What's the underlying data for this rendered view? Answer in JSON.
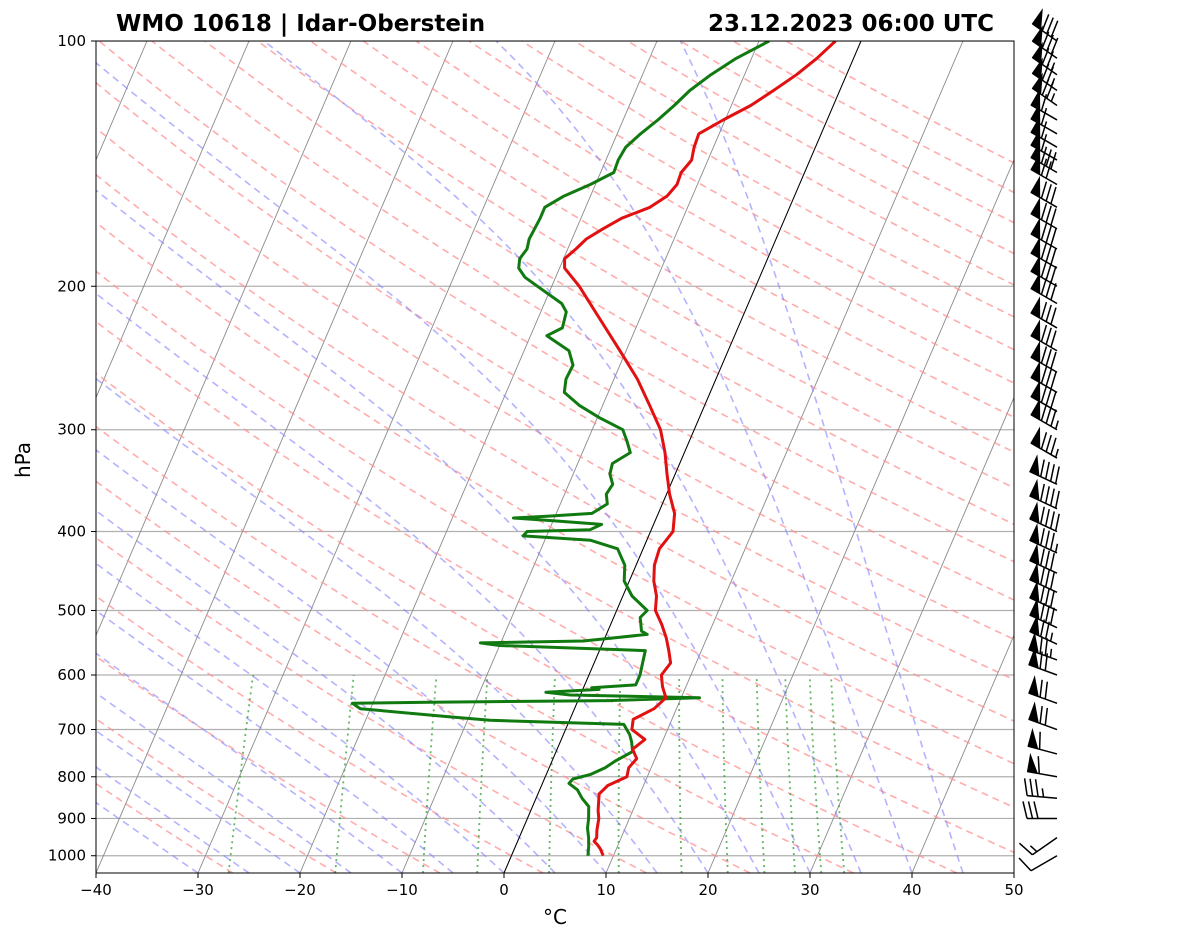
{
  "chart_data": {
    "type": "line",
    "chart_kind": "Skew-T log-P diagram",
    "title_left": "WMO 10618 | Idar-Oberstein",
    "title_right": "23.12.2023 06:00 UTC",
    "xlabel": "°C",
    "ylabel": "hPa",
    "xlim": [
      -40,
      50
    ],
    "ylim": [
      1050,
      100
    ],
    "y_scale": "log",
    "x_ticks": [
      "−40",
      "−30",
      "−20",
      "−10",
      "0",
      "10",
      "20",
      "30",
      "40",
      "50"
    ],
    "y_ticks": [
      "100",
      "200",
      "300",
      "400",
      "500",
      "600",
      "700",
      "800",
      "900",
      "1000"
    ],
    "isobar_grid": true,
    "colors": {
      "temperature": "#e11111",
      "dewpoint": "#107a10",
      "isotherms": "#8a8a8a",
      "dry_adiabats": "#ff9090",
      "moist_adiabats": "#8080ff",
      "mixing_ratio": "#30a030",
      "zero_isotherm": "#000000"
    },
    "series": [
      {
        "key": "temperature",
        "points": [
          [
            1000,
            9.0
          ],
          [
            980,
            8.4
          ],
          [
            970,
            8.0
          ],
          [
            960,
            7.5
          ],
          [
            950,
            7.6
          ],
          [
            930,
            7.3
          ],
          [
            900,
            7.0
          ],
          [
            880,
            6.6
          ],
          [
            860,
            6.3
          ],
          [
            840,
            6.0
          ],
          [
            820,
            6.5
          ],
          [
            800,
            8.0
          ],
          [
            780,
            7.8
          ],
          [
            760,
            8.2
          ],
          [
            740,
            7.4
          ],
          [
            720,
            8.2
          ],
          [
            700,
            6.5
          ],
          [
            680,
            6.2
          ],
          [
            660,
            7.8
          ],
          [
            640,
            8.5
          ],
          [
            620,
            7.7
          ],
          [
            600,
            7.1
          ],
          [
            580,
            7.5
          ],
          [
            560,
            6.8
          ],
          [
            540,
            6.0
          ],
          [
            520,
            5.0
          ],
          [
            500,
            3.8
          ],
          [
            480,
            3.3
          ],
          [
            460,
            2.4
          ],
          [
            440,
            1.8
          ],
          [
            420,
            1.6
          ],
          [
            400,
            2.2
          ],
          [
            380,
            1.6
          ],
          [
            360,
            0.3
          ],
          [
            340,
            -0.8
          ],
          [
            320,
            -1.9
          ],
          [
            300,
            -3.3
          ],
          [
            280,
            -5.4
          ],
          [
            260,
            -7.7
          ],
          [
            240,
            -10.6
          ],
          [
            220,
            -13.8
          ],
          [
            200,
            -17.3
          ],
          [
            190,
            -19.5
          ],
          [
            185,
            -19.9
          ],
          [
            180,
            -19.2
          ],
          [
            175,
            -18.6
          ],
          [
            170,
            -17.4
          ],
          [
            165,
            -16.0
          ],
          [
            160,
            -13.7
          ],
          [
            155,
            -12.5
          ],
          [
            150,
            -12.0
          ],
          [
            145,
            -12.1
          ],
          [
            140,
            -11.6
          ],
          [
            135,
            -11.9
          ],
          [
            130,
            -12.0
          ],
          [
            125,
            -10.2
          ],
          [
            120,
            -8.1
          ],
          [
            115,
            -6.5
          ],
          [
            110,
            -4.9
          ],
          [
            105,
            -3.6
          ],
          [
            100,
            -2.5
          ]
        ]
      },
      {
        "key": "dewpoint",
        "points": [
          [
            1000,
            7.5
          ],
          [
            975,
            7.2
          ],
          [
            950,
            6.8
          ],
          [
            925,
            6.3
          ],
          [
            900,
            6.0
          ],
          [
            870,
            5.5
          ],
          [
            850,
            4.5
          ],
          [
            830,
            3.7
          ],
          [
            815,
            2.6
          ],
          [
            805,
            2.8
          ],
          [
            795,
            4.3
          ],
          [
            780,
            5.5
          ],
          [
            765,
            6.2
          ],
          [
            745,
            7.5
          ],
          [
            725,
            7.0
          ],
          [
            710,
            6.5
          ],
          [
            690,
            5.5
          ],
          [
            682,
            -7.8
          ],
          [
            675,
            -12.0
          ],
          [
            660,
            -21.0
          ],
          [
            650,
            -22.0
          ],
          [
            648,
            -14.5
          ],
          [
            645,
            3.0
          ],
          [
            640,
            11.8
          ],
          [
            635,
            -1.0
          ],
          [
            630,
            -3.5
          ],
          [
            625,
            1.6
          ],
          [
            622,
            0.8
          ],
          [
            617,
            5.0
          ],
          [
            600,
            5.0
          ],
          [
            560,
            4.5
          ],
          [
            552,
            -10.0
          ],
          [
            548,
            -12.0
          ],
          [
            545,
            -2.0
          ],
          [
            540,
            1.0
          ],
          [
            535,
            4.0
          ],
          [
            530,
            3.3
          ],
          [
            510,
            2.6
          ],
          [
            500,
            3.0
          ],
          [
            480,
            0.9
          ],
          [
            460,
            -0.5
          ],
          [
            440,
            -1.1
          ],
          [
            420,
            -2.5
          ],
          [
            410,
            -5.5
          ],
          [
            405,
            -12.3
          ],
          [
            400,
            -12.1
          ],
          [
            398,
            -6.0
          ],
          [
            392,
            -5.1
          ],
          [
            388,
            -10.0
          ],
          [
            385,
            -14.0
          ],
          [
            383,
            -10.8
          ],
          [
            380,
            -6.5
          ],
          [
            370,
            -5.4
          ],
          [
            360,
            -5.9
          ],
          [
            350,
            -5.7
          ],
          [
            340,
            -6.4
          ],
          [
            330,
            -6.6
          ],
          [
            320,
            -5.3
          ],
          [
            310,
            -6.1
          ],
          [
            300,
            -7.0
          ],
          [
            290,
            -9.8
          ],
          [
            280,
            -12.3
          ],
          [
            270,
            -14.3
          ],
          [
            260,
            -14.7
          ],
          [
            250,
            -14.6
          ],
          [
            240,
            -15.6
          ],
          [
            230,
            -18.4
          ],
          [
            225,
            -17.2
          ],
          [
            215,
            -17.5
          ],
          [
            210,
            -18.3
          ],
          [
            200,
            -21.4
          ],
          [
            195,
            -23.0
          ],
          [
            190,
            -24.0
          ],
          [
            185,
            -24.3
          ],
          [
            180,
            -24.0
          ],
          [
            175,
            -24.2
          ],
          [
            170,
            -24.1
          ],
          [
            165,
            -24.0
          ],
          [
            160,
            -24.0
          ],
          [
            155,
            -22.6
          ],
          [
            150,
            -20.5
          ],
          [
            145,
            -18.7
          ],
          [
            140,
            -18.8
          ],
          [
            135,
            -18.6
          ],
          [
            130,
            -17.7
          ],
          [
            125,
            -16.6
          ],
          [
            120,
            -15.6
          ],
          [
            115,
            -14.7
          ],
          [
            110,
            -13.3
          ],
          [
            105,
            -11.5
          ],
          [
            100,
            -9.0
          ]
        ]
      }
    ],
    "wind_barbs": {
      "pressures": [
        1000,
        950,
        900,
        850,
        800,
        750,
        700,
        650,
        600,
        575,
        550,
        525,
        500,
        475,
        450,
        425,
        400,
        375,
        350,
        325,
        300,
        285,
        270,
        255,
        240,
        225,
        210,
        200,
        190,
        180,
        170,
        160,
        150,
        145,
        140,
        135,
        130,
        125,
        120,
        115,
        110,
        105,
        100
      ],
      "speeds_kt": [
        10,
        15,
        30,
        35,
        60,
        60,
        70,
        70,
        70,
        75,
        75,
        80,
        80,
        80,
        80,
        85,
        90,
        90,
        90,
        85,
        85,
        80,
        80,
        80,
        80,
        80,
        80,
        80,
        80,
        80,
        80,
        80,
        70,
        80,
        60,
        60,
        60,
        60,
        75,
        75,
        75,
        80,
        80
      ],
      "directions_deg": [
        240,
        235,
        270,
        275,
        280,
        285,
        290,
        290,
        290,
        290,
        295,
        295,
        295,
        295,
        295,
        295,
        295,
        295,
        295,
        300,
        300,
        300,
        300,
        300,
        300,
        300,
        300,
        300,
        300,
        300,
        300,
        300,
        300,
        300,
        300,
        300,
        300,
        300,
        305,
        305,
        305,
        305,
        305
      ]
    }
  }
}
